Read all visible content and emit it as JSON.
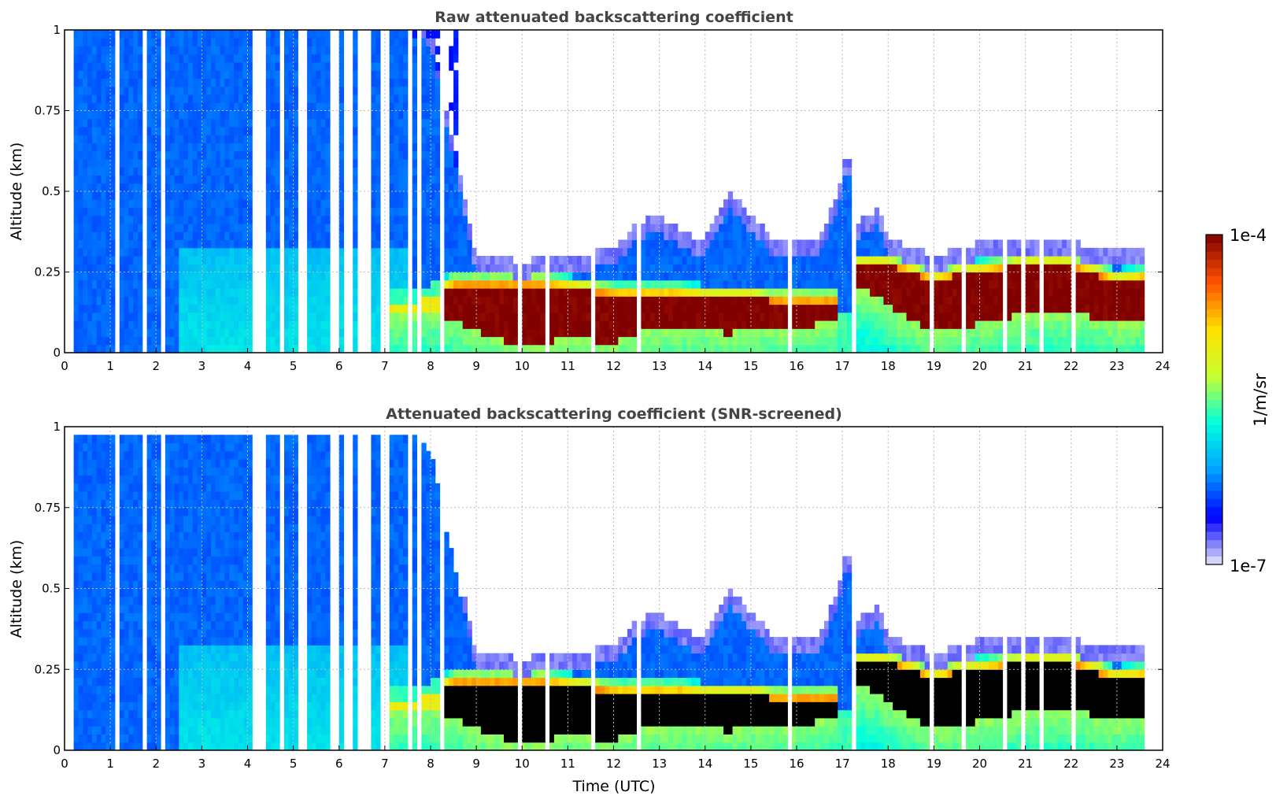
{
  "chart_data": [
    {
      "type": "heatmap",
      "title": "Raw attenuated backscattering coefficient",
      "xlabel": "",
      "ylabel": "Altitude (km)",
      "xlim": [
        0,
        24
      ],
      "ylim": [
        0,
        1
      ],
      "xticks": [
        "0",
        "1",
        "2",
        "3",
        "4",
        "5",
        "6",
        "7",
        "8",
        "9",
        "10",
        "11",
        "12",
        "13",
        "14",
        "15",
        "16",
        "17",
        "18",
        "19",
        "20",
        "21",
        "22",
        "23",
        "24"
      ],
      "yticks": [
        "0",
        "0.25",
        "0.5",
        "0.75",
        "1"
      ],
      "grid": true,
      "snr_screened": false
    },
    {
      "type": "heatmap",
      "title": "Attenuated backscattering coefficient (SNR-screened)",
      "xlabel": "Time (UTC)",
      "ylabel": "Altitude (km)",
      "xlim": [
        0,
        24
      ],
      "ylim": [
        0,
        1
      ],
      "xticks": [
        "0",
        "1",
        "2",
        "3",
        "4",
        "5",
        "6",
        "7",
        "8",
        "9",
        "10",
        "11",
        "12",
        "13",
        "14",
        "15",
        "16",
        "17",
        "18",
        "19",
        "20",
        "21",
        "22",
        "23",
        "24"
      ],
      "yticks": [
        "0",
        "0.25",
        "0.5",
        "0.75",
        "1"
      ],
      "grid": true,
      "snr_screened": true
    }
  ],
  "profile": {
    "time_h": [
      0,
      7,
      7.5,
      8,
      8.5,
      9,
      9.5,
      10,
      10.5,
      11,
      12,
      12.5,
      13,
      13.5,
      14,
      14.5,
      15,
      15.5,
      16,
      16.5,
      16.9,
      17.1,
      17.3,
      17.8,
      18,
      18.5,
      19,
      19.5,
      20,
      21,
      22,
      23,
      23.55
    ],
    "signal_top_km": [
      1,
      1,
      1,
      0.95,
      0.6,
      0.25,
      0.25,
      0.23,
      0.25,
      0.25,
      0.27,
      0.35,
      0.38,
      0.32,
      0.3,
      0.45,
      0.38,
      0.3,
      0.3,
      0.3,
      0.45,
      0.6,
      0.35,
      0.4,
      0.3,
      0.28,
      0.25,
      0.27,
      0.29,
      0.3,
      0.29,
      0.28,
      0.28
    ],
    "cloud_base_km": [
      null,
      0.12,
      0.12,
      0.13,
      0.1,
      0.07,
      0.04,
      0.02,
      0.03,
      0.05,
      0.03,
      0.06,
      0.07,
      0.08,
      0.07,
      0.06,
      0.08,
      0.07,
      0.08,
      0.09,
      0.1,
      null,
      0.2,
      0.18,
      0.15,
      0.1,
      0.07,
      0.08,
      0.09,
      0.12,
      0.13,
      0.09,
      0.1
    ],
    "cloud_top_km": [
      null,
      0.15,
      0.15,
      0.17,
      0.21,
      0.21,
      0.21,
      0.21,
      0.21,
      0.2,
      0.18,
      0.18,
      0.18,
      0.18,
      0.17,
      0.17,
      0.17,
      0.16,
      0.16,
      0.16,
      0.16,
      null,
      0.27,
      0.27,
      0.27,
      0.25,
      0.22,
      0.24,
      0.25,
      0.27,
      0.27,
      0.22,
      0.23
    ],
    "data_end_h": 23.55
  },
  "colorbar": {
    "label": "1/m/sr",
    "max_label": "1e-4",
    "min_label": "1e-7",
    "scale": "log",
    "range": [
      1e-07,
      0.0001
    ],
    "colors": [
      "#e8e8fa",
      "#0000ff",
      "#00a0ff",
      "#00ffe0",
      "#c8ff30",
      "#ffe000",
      "#ff5000",
      "#800000"
    ]
  },
  "masked_color": "#000000"
}
